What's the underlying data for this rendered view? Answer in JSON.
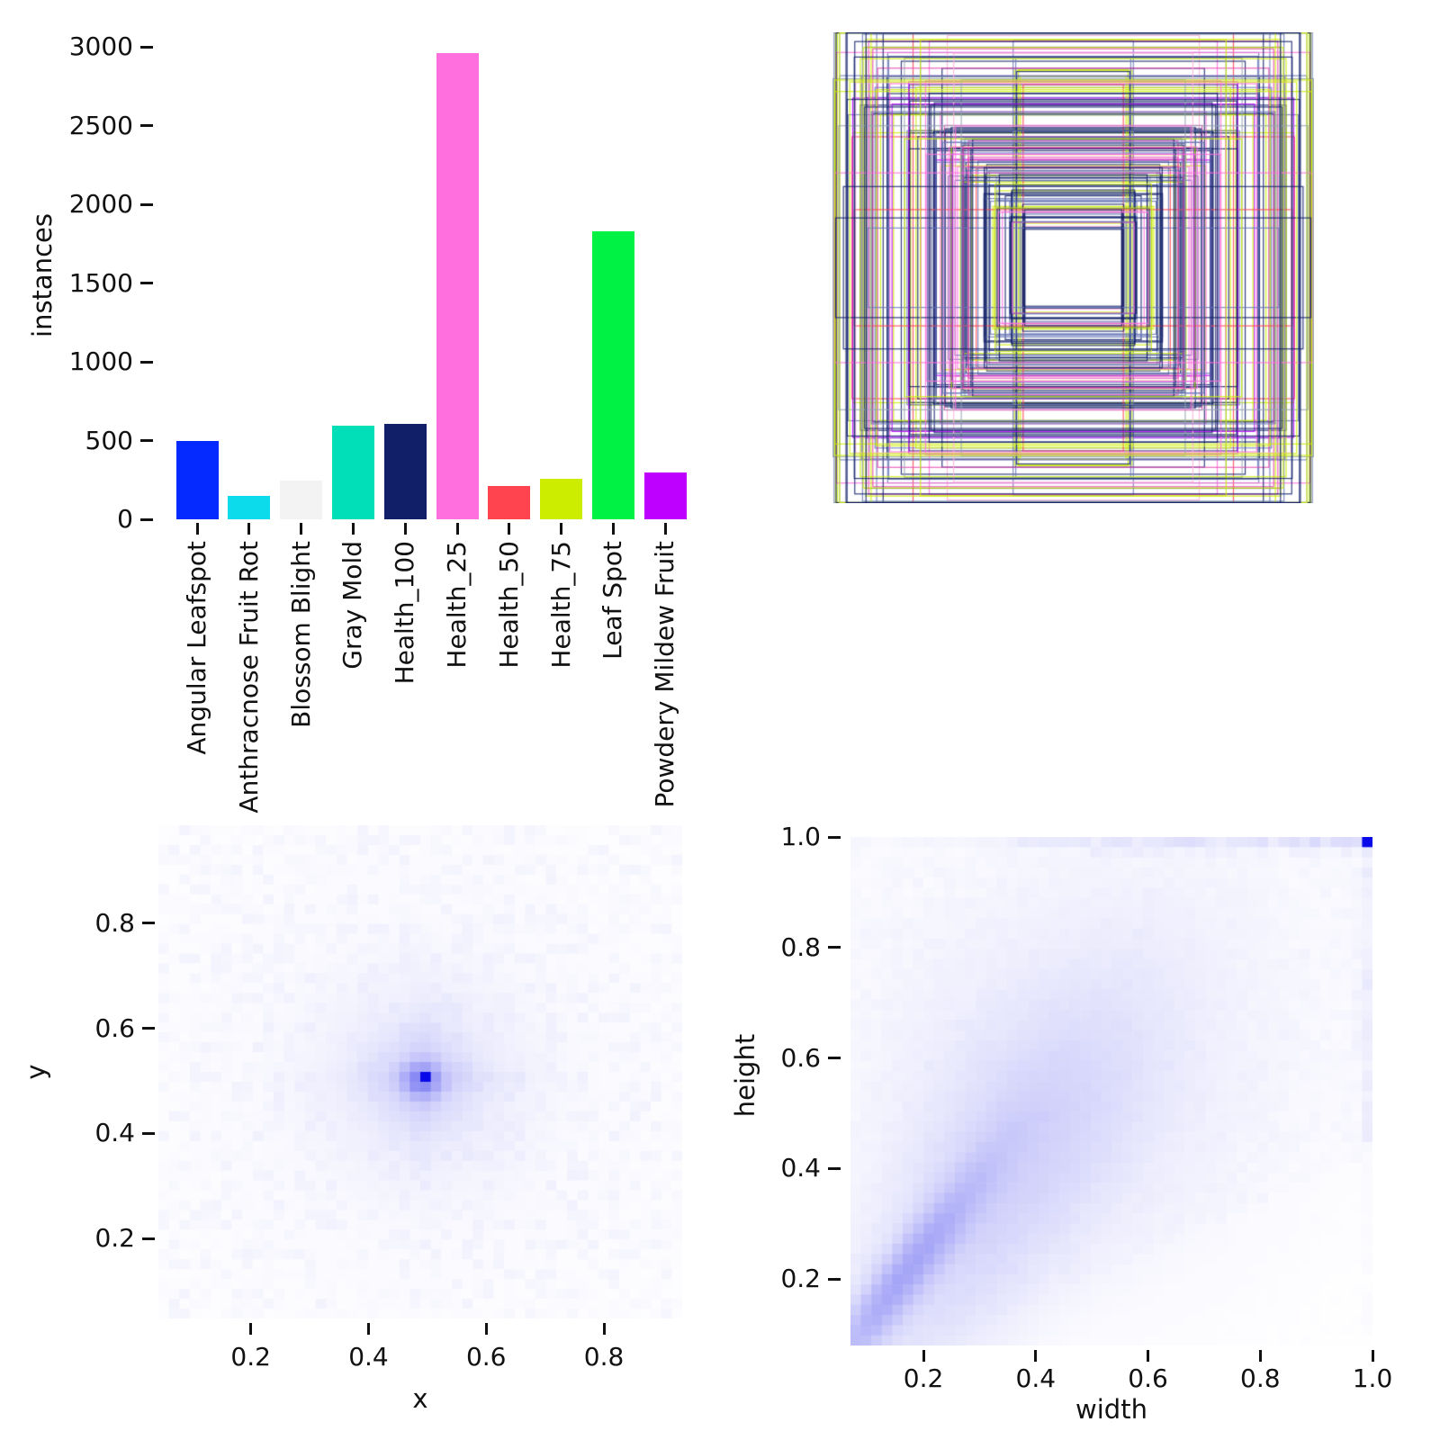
{
  "figure": {
    "background": "#ffffff",
    "description": "Dataset labels summary figure: class instance counts, overlaid bounding boxes, box center (x,y) heatmap and box (width,height) heatmap",
    "heatmap_colormap": [
      "#ffffff",
      "#0808e9"
    ]
  },
  "chart_data": [
    {
      "id": "class-instances-bar",
      "type": "bar",
      "title": "",
      "xlabel": "",
      "ylabel": "instances",
      "categories": [
        "Angular Leafspot",
        "Anthracnose Fruit Rot",
        "Blossom Blight",
        "Gray Mold",
        "Health_100",
        "Health_25",
        "Health_50",
        "Health_75",
        "Leaf Spot",
        "Powdery Mildew Fruit"
      ],
      "values": [
        500,
        150,
        248,
        593,
        606,
        2958,
        212,
        257,
        1827,
        300
      ],
      "bar_colors": [
        "#042AFF",
        "#0BDBEB",
        "#F3F3F3",
        "#00DFB7",
        "#111F68",
        "#FF6FDD",
        "#FF444F",
        "#CCED00",
        "#00F344",
        "#BD00FF"
      ],
      "yticks": [
        0,
        500,
        1000,
        1500,
        2000,
        2500,
        3000
      ],
      "ylim": [
        0,
        3100
      ],
      "grid": false,
      "legend": "none"
    },
    {
      "id": "boxes-overlay",
      "type": "other",
      "description": "All bounding boxes drawn concentric about a common center, outline colored by class; dark navy dominates with yellow, pink, red, slate and gray outlines; empty white square at the very center",
      "box_count": 175,
      "seed": 42,
      "palette_weights": [
        {
          "color": "#111F68",
          "weight": 0.4
        },
        {
          "color": "#6A79B8",
          "weight": 0.2
        },
        {
          "color": "#CCED00",
          "weight": 0.12
        },
        {
          "color": "#FF6FDD",
          "weight": 0.08
        },
        {
          "color": "#FF444F",
          "weight": 0.06
        },
        {
          "color": "#97A4B0",
          "weight": 0.05
        },
        {
          "color": "#BD00FF",
          "weight": 0.04
        },
        {
          "color": "#E646B0",
          "weight": 0.03
        },
        {
          "color": "#FFB3D9",
          "weight": 0.02
        }
      ]
    },
    {
      "id": "xy-center-heatmap",
      "type": "heatmap",
      "title": "",
      "xlabel": "x",
      "ylabel": "y",
      "bins": 50,
      "xticks": [
        0.2,
        0.4,
        0.6,
        0.8
      ],
      "yticks": [
        0.2,
        0.4,
        0.6,
        0.8
      ],
      "xlim": [
        0.043,
        0.933
      ],
      "ylim": [
        0.048,
        0.986
      ],
      "grid": false,
      "peak": {
        "x": 0.5,
        "y": 0.5
      },
      "distribution": "strong gaussian cluster of box centers at (0.5, 0.5) with faint cross streaks and sparse uniform noise over the whole range",
      "seed": 7
    },
    {
      "id": "width-height-heatmap",
      "type": "heatmap",
      "title": "",
      "xlabel": "width",
      "ylabel": "height",
      "bins": 50,
      "xticks": [
        0.2,
        0.4,
        0.6,
        0.8,
        1.0
      ],
      "yticks": [
        0.2,
        0.4,
        0.6,
        0.8,
        1.0
      ],
      "xlim": [
        0.07,
        1.0
      ],
      "ylim": [
        0.08,
        1.0
      ],
      "grid": false,
      "peak": {
        "width": 1.0,
        "height": 1.0
      },
      "distribution": "dense diagonal ridge of small boxes (height ~ 1.25 x width) concentrated near (0.15-0.3, 0.15-0.4), broad faint spread above the diagonal, light band of full-height boxes along height = 1.0, darkest single cell at (1.0, 1.0)",
      "seed": 99
    }
  ]
}
